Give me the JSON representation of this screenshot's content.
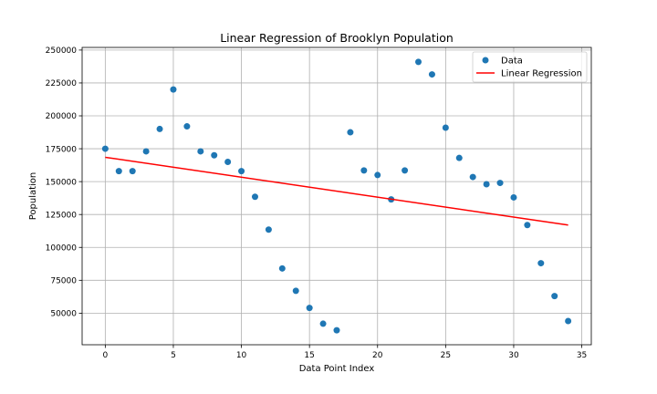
{
  "chart_data": {
    "type": "scatter",
    "title": "Linear Regression of Brooklyn Population",
    "xlabel": "Data Point Index",
    "ylabel": "Population",
    "xlim": [
      -1.7,
      35.7
    ],
    "ylim": [
      26000,
      252000
    ],
    "xticks": [
      0,
      5,
      10,
      15,
      20,
      25,
      30,
      35
    ],
    "xtick_labels": [
      "0",
      "5",
      "10",
      "15",
      "20",
      "25",
      "30",
      "35"
    ],
    "yticks": [
      50000,
      75000,
      100000,
      125000,
      150000,
      175000,
      200000,
      225000,
      250000
    ],
    "ytick_labels": [
      "50000",
      "75000",
      "100000",
      "125000",
      "150000",
      "175000",
      "200000",
      "225000",
      "250000"
    ],
    "grid": true,
    "legend": {
      "placement": "top-right",
      "entries": [
        "Data",
        "Linear Regression"
      ]
    },
    "series": [
      {
        "name": "Data",
        "kind": "scatter",
        "color": "#1f77b4",
        "x": [
          0,
          1,
          2,
          3,
          4,
          5,
          6,
          7,
          8,
          9,
          10,
          11,
          12,
          13,
          14,
          15,
          16,
          17,
          18,
          19,
          20,
          21,
          22,
          23,
          24,
          25,
          26,
          27,
          28,
          29,
          30,
          31,
          32,
          33,
          34
        ],
        "y": [
          175000,
          158000,
          158000,
          173000,
          190000,
          220000,
          192000,
          173000,
          170000,
          165000,
          158000,
          138500,
          113500,
          84000,
          67000,
          54000,
          42000,
          37000,
          187500,
          158500,
          155000,
          136500,
          158500,
          241000,
          231500,
          191000,
          168000,
          153500,
          148000,
          149000,
          138000,
          117000,
          88000,
          63000,
          44000
        ]
      },
      {
        "name": "Linear Regression",
        "kind": "line",
        "color": "#ff0000",
        "x": [
          0,
          34
        ],
        "y": [
          168500,
          117000
        ]
      }
    ]
  }
}
